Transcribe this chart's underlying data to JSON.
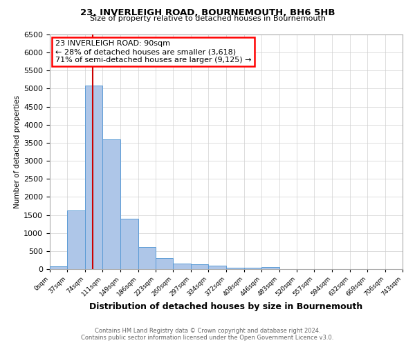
{
  "title": "23, INVERLEIGH ROAD, BOURNEMOUTH, BH6 5HB",
  "subtitle": "Size of property relative to detached houses in Bournemouth",
  "xlabel": "Distribution of detached houses by size in Bournemouth",
  "ylabel": "Number of detached properties",
  "footnote1": "Contains HM Land Registry data © Crown copyright and database right 2024.",
  "footnote2": "Contains public sector information licensed under the Open Government Licence v3.0.",
  "bar_values": [
    75,
    1630,
    5080,
    3600,
    1400,
    610,
    300,
    155,
    130,
    95,
    45,
    30,
    55,
    0,
    0,
    0,
    0,
    0,
    0,
    0
  ],
  "bin_edges": [
    0,
    37,
    74,
    111,
    149,
    186,
    223,
    260,
    297,
    334,
    372,
    409,
    446,
    483,
    520,
    557,
    594,
    632,
    669,
    706,
    743
  ],
  "bin_labels": [
    "0sqm",
    "37sqm",
    "74sqm",
    "111sqm",
    "149sqm",
    "186sqm",
    "223sqm",
    "260sqm",
    "297sqm",
    "334sqm",
    "372sqm",
    "409sqm",
    "446sqm",
    "483sqm",
    "520sqm",
    "557sqm",
    "594sqm",
    "632sqm",
    "669sqm",
    "706sqm",
    "743sqm"
  ],
  "bar_color": "#aec6e8",
  "bar_edge_color": "#5b9bd5",
  "annotation_line1": "23 INVERLEIGH ROAD: 90sqm",
  "annotation_line2": "← 28% of detached houses are smaller (3,618)",
  "annotation_line3": "71% of semi-detached houses are larger (9,125) →",
  "vline_x": 90,
  "vline_color": "#cc0000",
  "ylim": [
    0,
    6500
  ],
  "ytick_step": 500,
  "background_color": "#ffffff",
  "grid_color": "#d0d0d0",
  "title_fontsize": 9.5,
  "subtitle_fontsize": 8,
  "xlabel_fontsize": 9,
  "ylabel_fontsize": 7.5,
  "ytick_fontsize": 8,
  "xtick_fontsize": 6.5,
  "annot_fontsize": 8,
  "footnote_fontsize": 6,
  "footnote_color": "#666666"
}
